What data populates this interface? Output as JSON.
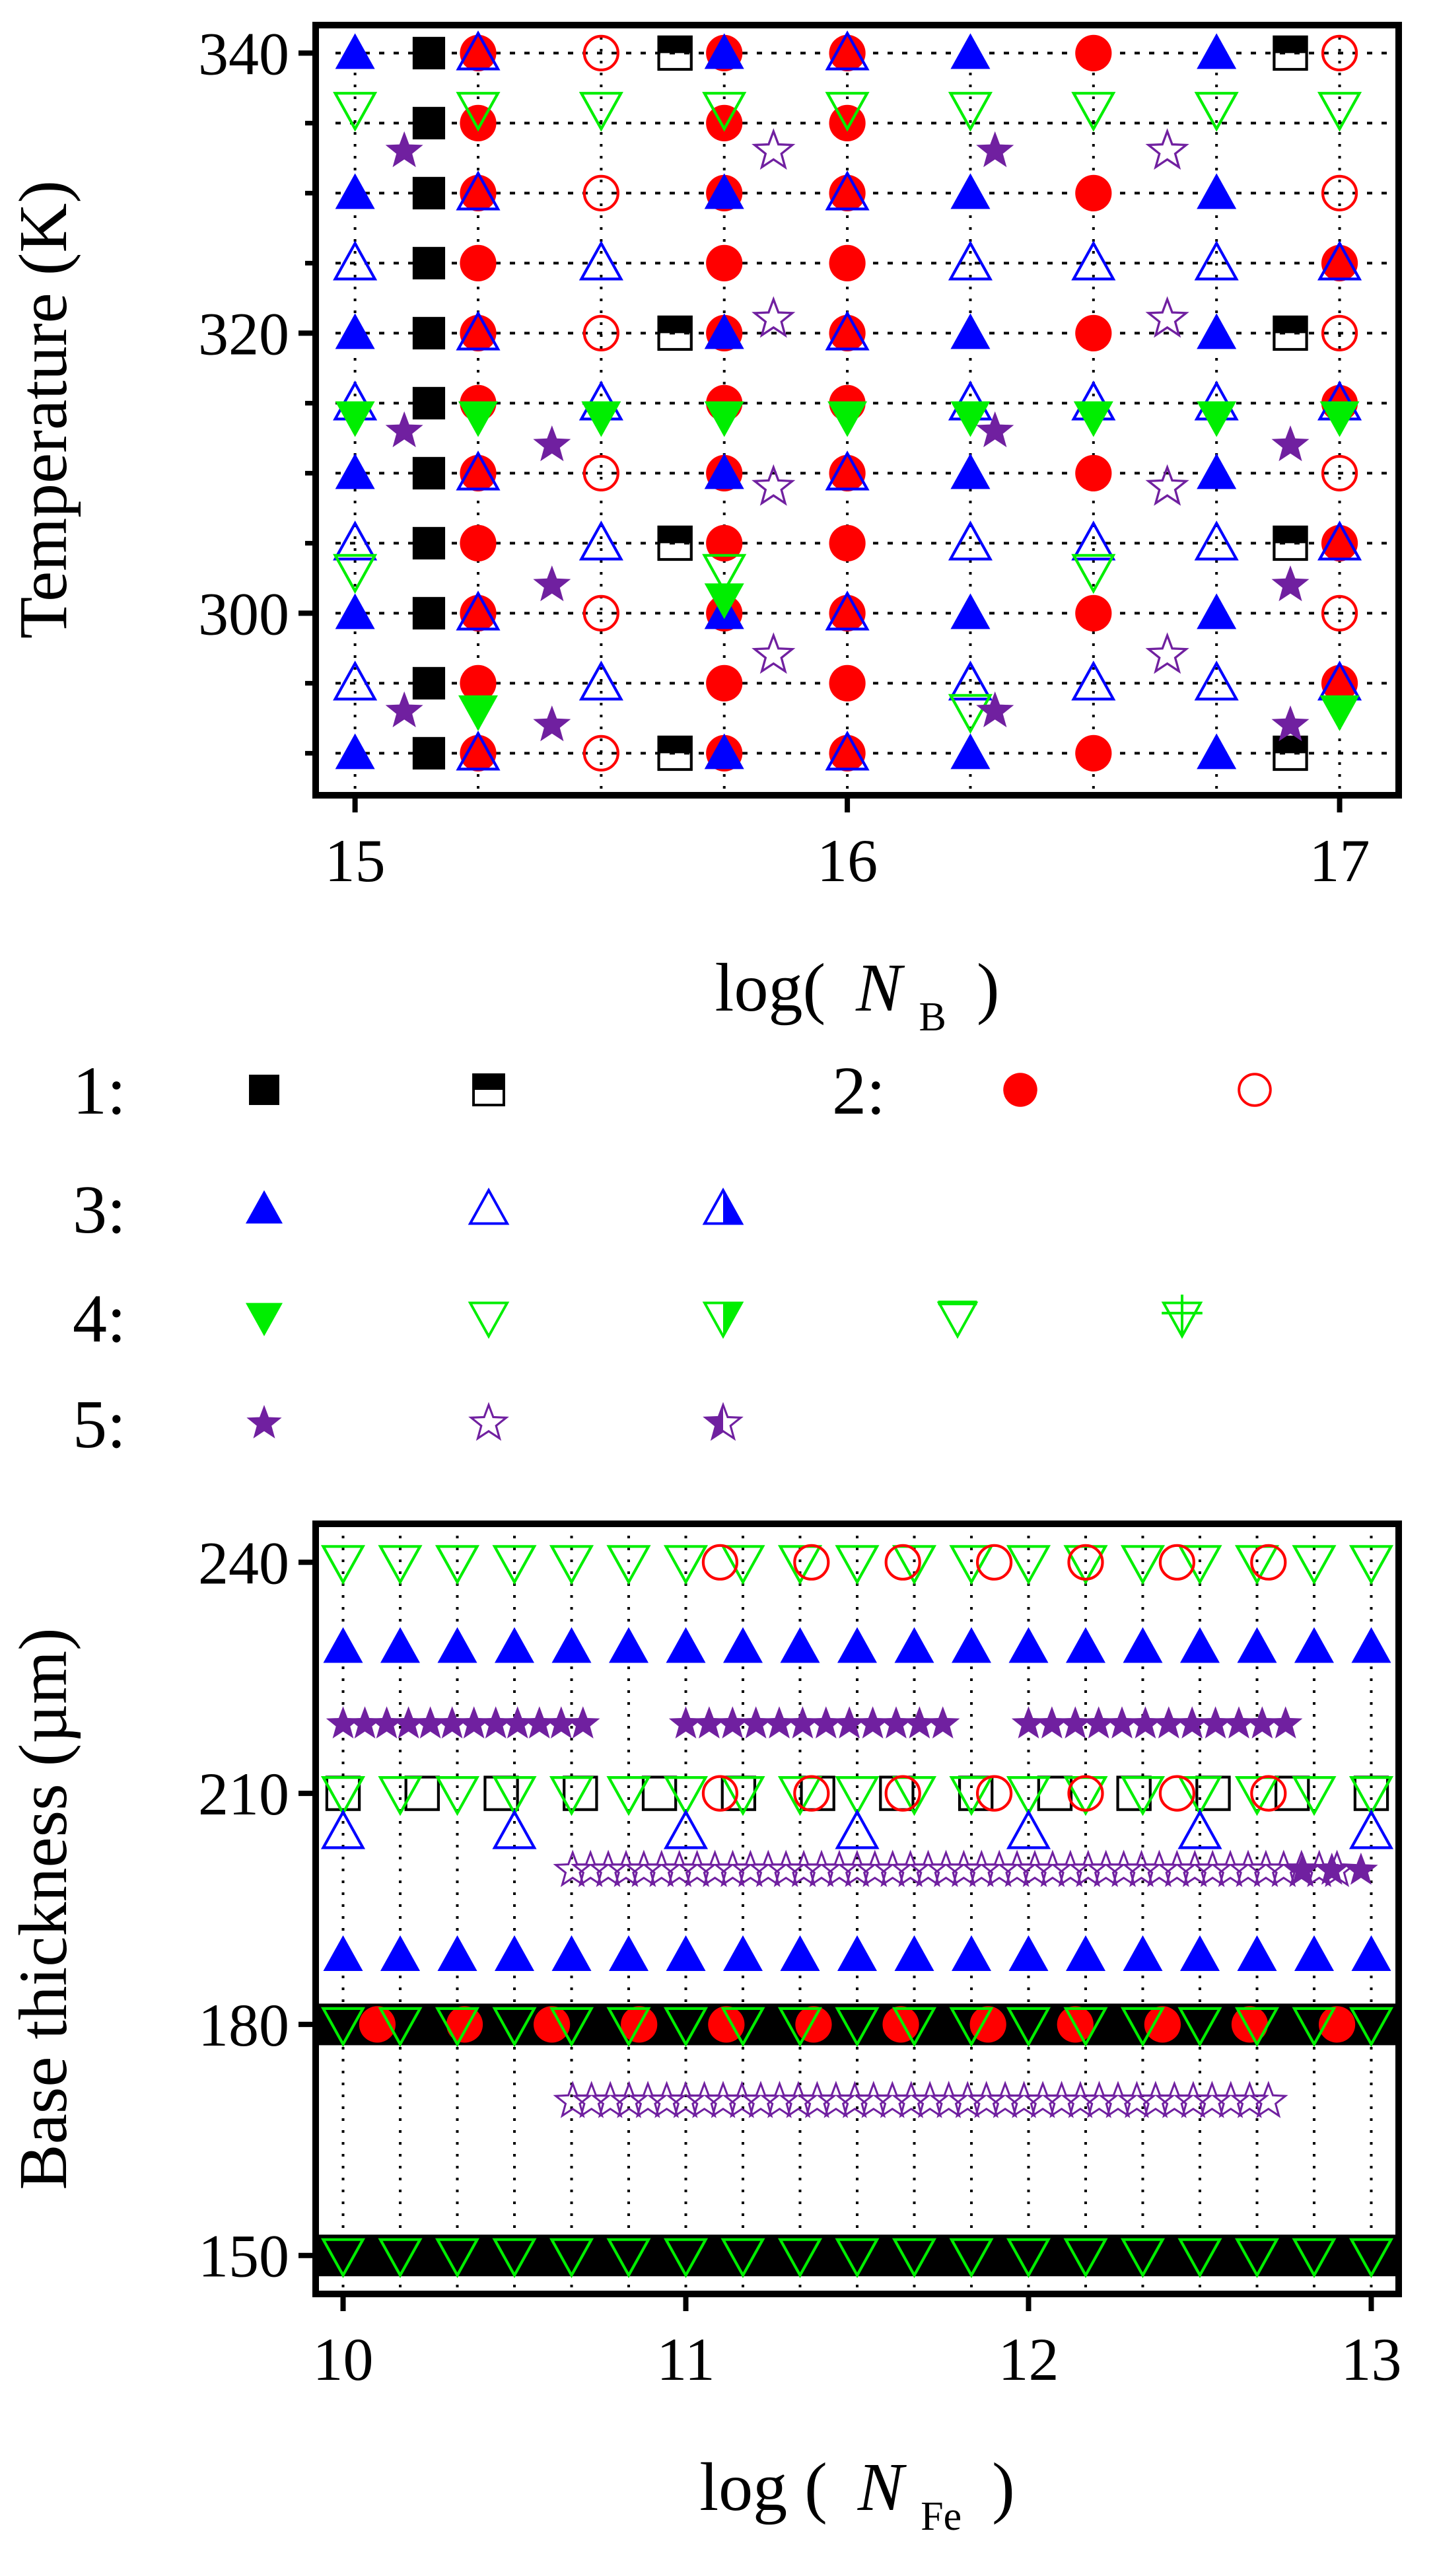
{
  "colors": {
    "black": "#000000",
    "red": "#ff0000",
    "blue": "#0000ff",
    "green": "#00ee00",
    "purple": "#7020a0",
    "grid": "#000000"
  },
  "legend": {
    "groups": [
      {
        "label": "1:",
        "items": [
          "square-filled",
          "square-half-top"
        ]
      },
      {
        "label": "2:",
        "items": [
          "circle-filled",
          "circle-open"
        ]
      },
      {
        "label": "3:",
        "items": [
          "triangle-up-filled",
          "triangle-up-open",
          "triangle-up-half-right"
        ]
      },
      {
        "label": "4:",
        "items": [
          "triangle-down-filled",
          "triangle-down-open",
          "triangle-down-half-right",
          "triangle-down-bar",
          "triangle-down-plus"
        ]
      },
      {
        "label": "5:",
        "items": [
          "star-filled",
          "star-open",
          "star-half"
        ]
      }
    ]
  },
  "chart_data": [
    {
      "type": "scatter",
      "title": "",
      "xlabel": "log(",
      "xlabel_var": "N",
      "xlabel_sub": "B",
      "xlabel_close": ")",
      "ylabel": "Temperature (K)",
      "xlim": [
        14.92,
        17.12
      ],
      "ylim": [
        287,
        342
      ],
      "xticks": [
        15,
        16,
        17
      ],
      "xtick_labels": [
        "15",
        "16",
        "17"
      ],
      "yticks": [
        300,
        320,
        340
      ],
      "ytick_labels": [
        "300",
        "320",
        "340"
      ],
      "yminor": [
        290,
        295,
        305,
        310,
        315,
        325,
        330,
        335
      ],
      "grid_y": [
        290,
        295,
        300,
        305,
        310,
        315,
        320,
        325,
        330,
        335,
        340
      ],
      "grid_style": "dotted horizontal",
      "vlines": [
        15,
        15.25,
        15.5,
        15.75,
        16,
        16.25,
        16.5,
        16.75,
        17
      ],
      "series": [
        {
          "marker": "square-filled",
          "color": "black",
          "points": [
            [
              15.15,
              340
            ],
            [
              15.15,
              335
            ],
            [
              15.15,
              330
            ],
            [
              15.15,
              325
            ],
            [
              15.15,
              320
            ],
            [
              15.15,
              315
            ],
            [
              15.15,
              310
            ],
            [
              15.15,
              305
            ],
            [
              15.15,
              300
            ],
            [
              15.15,
              295
            ],
            [
              15.15,
              290
            ]
          ]
        },
        {
          "marker": "square-half-top",
          "color": "black",
          "points": [
            [
              15.65,
              340
            ],
            [
              15.65,
              320
            ],
            [
              15.65,
              305
            ],
            [
              15.65,
              290
            ],
            [
              16.9,
              340
            ],
            [
              16.9,
              320
            ],
            [
              16.9,
              305
            ],
            [
              16.9,
              290
            ]
          ]
        },
        {
          "marker": "circle-filled",
          "color": "red",
          "points": [
            [
              15.25,
              340
            ],
            [
              15.25,
              335
            ],
            [
              15.25,
              330
            ],
            [
              15.25,
              325
            ],
            [
              15.25,
              320
            ],
            [
              15.25,
              315
            ],
            [
              15.25,
              310
            ],
            [
              15.25,
              305
            ],
            [
              15.25,
              300
            ],
            [
              15.25,
              295
            ],
            [
              15.25,
              290
            ],
            [
              15.75,
              340
            ],
            [
              15.75,
              335
            ],
            [
              15.75,
              330
            ],
            [
              15.75,
              325
            ],
            [
              15.75,
              320
            ],
            [
              15.75,
              315
            ],
            [
              15.75,
              310
            ],
            [
              15.75,
              305
            ],
            [
              15.75,
              300
            ],
            [
              15.75,
              295
            ],
            [
              15.75,
              290
            ],
            [
              16,
              340
            ],
            [
              16,
              335
            ],
            [
              16,
              330
            ],
            [
              16,
              325
            ],
            [
              16,
              320
            ],
            [
              16,
              315
            ],
            [
              16,
              310
            ],
            [
              16,
              305
            ],
            [
              16,
              300
            ],
            [
              16,
              295
            ],
            [
              16,
              290
            ],
            [
              16.5,
              340
            ],
            [
              16.5,
              330
            ],
            [
              16.5,
              320
            ],
            [
              16.5,
              310
            ],
            [
              16.5,
              300
            ],
            [
              16.5,
              290
            ],
            [
              17,
              325
            ],
            [
              17,
              315
            ],
            [
              17,
              305
            ],
            [
              17,
              295
            ]
          ]
        },
        {
          "marker": "circle-open",
          "color": "red",
          "points": [
            [
              15.5,
              340
            ],
            [
              15.5,
              330
            ],
            [
              15.5,
              320
            ],
            [
              15.5,
              310
            ],
            [
              15.5,
              300
            ],
            [
              15.5,
              290
            ],
            [
              17,
              340
            ],
            [
              17,
              330
            ],
            [
              17,
              320
            ],
            [
              17,
              310
            ],
            [
              17,
              300
            ]
          ]
        },
        {
          "marker": "triangle-up-filled",
          "color": "blue",
          "points": [
            [
              15,
              340
            ],
            [
              15,
              330
            ],
            [
              15,
              320
            ],
            [
              15,
              310
            ],
            [
              15,
              300
            ],
            [
              15,
              290
            ],
            [
              15.75,
              340
            ],
            [
              15.75,
              330
            ],
            [
              15.75,
              320
            ],
            [
              15.75,
              310
            ],
            [
              15.75,
              300
            ],
            [
              15.75,
              290
            ],
            [
              16.25,
              340
            ],
            [
              16.25,
              330
            ],
            [
              16.25,
              320
            ],
            [
              16.25,
              310
            ],
            [
              16.25,
              300
            ],
            [
              16.25,
              290
            ],
            [
              16.75,
              340
            ],
            [
              16.75,
              330
            ],
            [
              16.75,
              320
            ],
            [
              16.75,
              310
            ],
            [
              16.75,
              300
            ],
            [
              16.75,
              290
            ]
          ]
        },
        {
          "marker": "triangle-up-open",
          "color": "blue",
          "points": [
            [
              15,
              325
            ],
            [
              15,
              315
            ],
            [
              15,
              305
            ],
            [
              15,
              295
            ],
            [
              15.25,
              340
            ],
            [
              15.25,
              330
            ],
            [
              15.25,
              320
            ],
            [
              15.25,
              310
            ],
            [
              15.25,
              300
            ],
            [
              15.25,
              290
            ],
            [
              15.5,
              325
            ],
            [
              15.5,
              315
            ],
            [
              15.5,
              305
            ],
            [
              15.5,
              295
            ],
            [
              16,
              340
            ],
            [
              16,
              330
            ],
            [
              16,
              320
            ],
            [
              16,
              310
            ],
            [
              16,
              300
            ],
            [
              16,
              290
            ],
            [
              16.25,
              325
            ],
            [
              16.25,
              315
            ],
            [
              16.25,
              305
            ],
            [
              16.25,
              295
            ],
            [
              16.5,
              325
            ],
            [
              16.5,
              315
            ],
            [
              16.5,
              305
            ],
            [
              16.5,
              295
            ],
            [
              16.75,
              325
            ],
            [
              16.75,
              315
            ],
            [
              16.75,
              305
            ],
            [
              16.75,
              295
            ],
            [
              17,
              325
            ],
            [
              17,
              315
            ],
            [
              17,
              305
            ],
            [
              17,
              295
            ]
          ]
        },
        {
          "marker": "triangle-down-filled",
          "color": "green",
          "points": [
            [
              15,
              314
            ],
            [
              15.25,
              314
            ],
            [
              15.5,
              314
            ],
            [
              15.75,
              314
            ],
            [
              16,
              314
            ],
            [
              16.25,
              314
            ],
            [
              16.5,
              314
            ],
            [
              16.75,
              314
            ],
            [
              17,
              314
            ],
            [
              15.75,
              301
            ],
            [
              15.25,
              293
            ],
            [
              17,
              293
            ]
          ]
        },
        {
          "marker": "triangle-down-open",
          "color": "green",
          "points": [
            [
              15,
              336
            ],
            [
              15.25,
              336
            ],
            [
              15.5,
              336
            ],
            [
              15.75,
              336
            ],
            [
              16,
              336
            ],
            [
              16.25,
              336
            ],
            [
              16.5,
              336
            ],
            [
              16.75,
              336
            ],
            [
              17,
              336
            ],
            [
              15,
              303
            ],
            [
              15.75,
              303
            ],
            [
              16.5,
              303
            ],
            [
              16.25,
              293
            ]
          ]
        },
        {
          "marker": "star-filled",
          "color": "purple",
          "points": [
            [
              15.1,
              333
            ],
            [
              15.1,
              313
            ],
            [
              15.1,
              293
            ],
            [
              15.4,
              312
            ],
            [
              15.4,
              302
            ],
            [
              15.4,
              292
            ],
            [
              16.3,
              333
            ],
            [
              16.3,
              313
            ],
            [
              16.3,
              293
            ],
            [
              16.9,
              312
            ],
            [
              16.9,
              302
            ],
            [
              16.9,
              292
            ]
          ]
        },
        {
          "marker": "star-open",
          "color": "purple",
          "points": [
            [
              15.85,
              333
            ],
            [
              15.85,
              321
            ],
            [
              15.85,
              309
            ],
            [
              15.85,
              297
            ],
            [
              16.65,
              333
            ],
            [
              16.65,
              321
            ],
            [
              16.65,
              309
            ],
            [
              16.65,
              297
            ]
          ]
        }
      ]
    },
    {
      "type": "scatter",
      "title": "",
      "xlabel": "log (",
      "xlabel_var": "N",
      "xlabel_sub": "Fe",
      "xlabel_close": ")",
      "ylabel": "Base thickness (µm)",
      "xlim": [
        9.92,
        13.08
      ],
      "ylim": [
        145,
        245
      ],
      "xticks": [
        10,
        11,
        12,
        13
      ],
      "xtick_labels": [
        "10",
        "11",
        "12",
        "13"
      ],
      "yticks": [
        150,
        180,
        210,
        240
      ],
      "ytick_labels": [
        "150",
        "180",
        "210",
        "240"
      ],
      "grid_style": "dotted vertical",
      "vlines": [
        10,
        10.1667,
        10.3333,
        10.5,
        10.6667,
        10.8333,
        11,
        11.1667,
        11.3333,
        11.5,
        11.6667,
        11.8333,
        12,
        12.1667,
        12.3333,
        12.5,
        12.6667,
        12.8333,
        13
      ],
      "rows": [
        {
          "y": 240,
          "marker": "triangle-down-open",
          "color": "green",
          "x_from": 10,
          "x_to": 13,
          "count": 19
        },
        {
          "y": 240,
          "marker": "circle-open",
          "color": "red",
          "x_from": 11.1,
          "x_to": 12.7,
          "count": 7
        },
        {
          "y": 229,
          "marker": "triangle-up-filled",
          "color": "blue",
          "x_from": 10,
          "x_to": 13,
          "count": 19
        },
        {
          "y": 219,
          "marker": "star-filled",
          "color": "purple",
          "x_from": 10,
          "x_to": 10.7,
          "count": 12
        },
        {
          "y": 219,
          "marker": "star-filled",
          "color": "purple",
          "x_from": 11,
          "x_to": 11.75,
          "count": 12
        },
        {
          "y": 219,
          "marker": "star-filled",
          "color": "purple",
          "x_from": 12,
          "x_to": 12.75,
          "count": 12
        },
        {
          "y": 210,
          "marker": "square-open",
          "color": "black",
          "x_from": 10,
          "x_to": 13,
          "count": 14
        },
        {
          "y": 210,
          "marker": "triangle-down-open",
          "color": "green",
          "x_from": 10,
          "x_to": 13,
          "count": 19
        },
        {
          "y": 210,
          "marker": "circle-open",
          "color": "red",
          "x_from": 11.1,
          "x_to": 12.7,
          "count": 7
        },
        {
          "y": 205,
          "marker": "triangle-up-open",
          "color": "blue",
          "x_from": 10,
          "x_to": 13,
          "count": 7
        },
        {
          "y": 200,
          "marker": "star-open",
          "color": "purple",
          "x_from": 10.67,
          "x_to": 12.9,
          "count": 44
        },
        {
          "y": 200,
          "marker": "star-filled",
          "color": "purple",
          "x_from": 12.8,
          "x_to": 12.97,
          "count": 3
        },
        {
          "y": 189,
          "marker": "triangle-up-filled",
          "color": "blue",
          "x_from": 10,
          "x_to": 13,
          "count": 19
        },
        {
          "y": 180,
          "marker": "bar",
          "color": "black",
          "x_from": 9.92,
          "x_to": 13.08,
          "count": 1
        },
        {
          "y": 180,
          "marker": "circle-filled",
          "color": "red",
          "x_from": 10.1,
          "x_to": 12.9,
          "count": 12
        },
        {
          "y": 180,
          "marker": "triangle-down-open",
          "color": "green",
          "x_from": 10,
          "x_to": 13,
          "count": 19
        },
        {
          "y": 170,
          "marker": "star-open",
          "color": "purple",
          "x_from": 10.67,
          "x_to": 12.7,
          "count": 38
        },
        {
          "y": 150,
          "marker": "bar",
          "color": "black",
          "x_from": 9.92,
          "x_to": 13.08,
          "count": 1
        },
        {
          "y": 150,
          "marker": "triangle-down-open",
          "color": "green",
          "x_from": 10,
          "x_to": 13,
          "count": 19
        }
      ]
    }
  ]
}
